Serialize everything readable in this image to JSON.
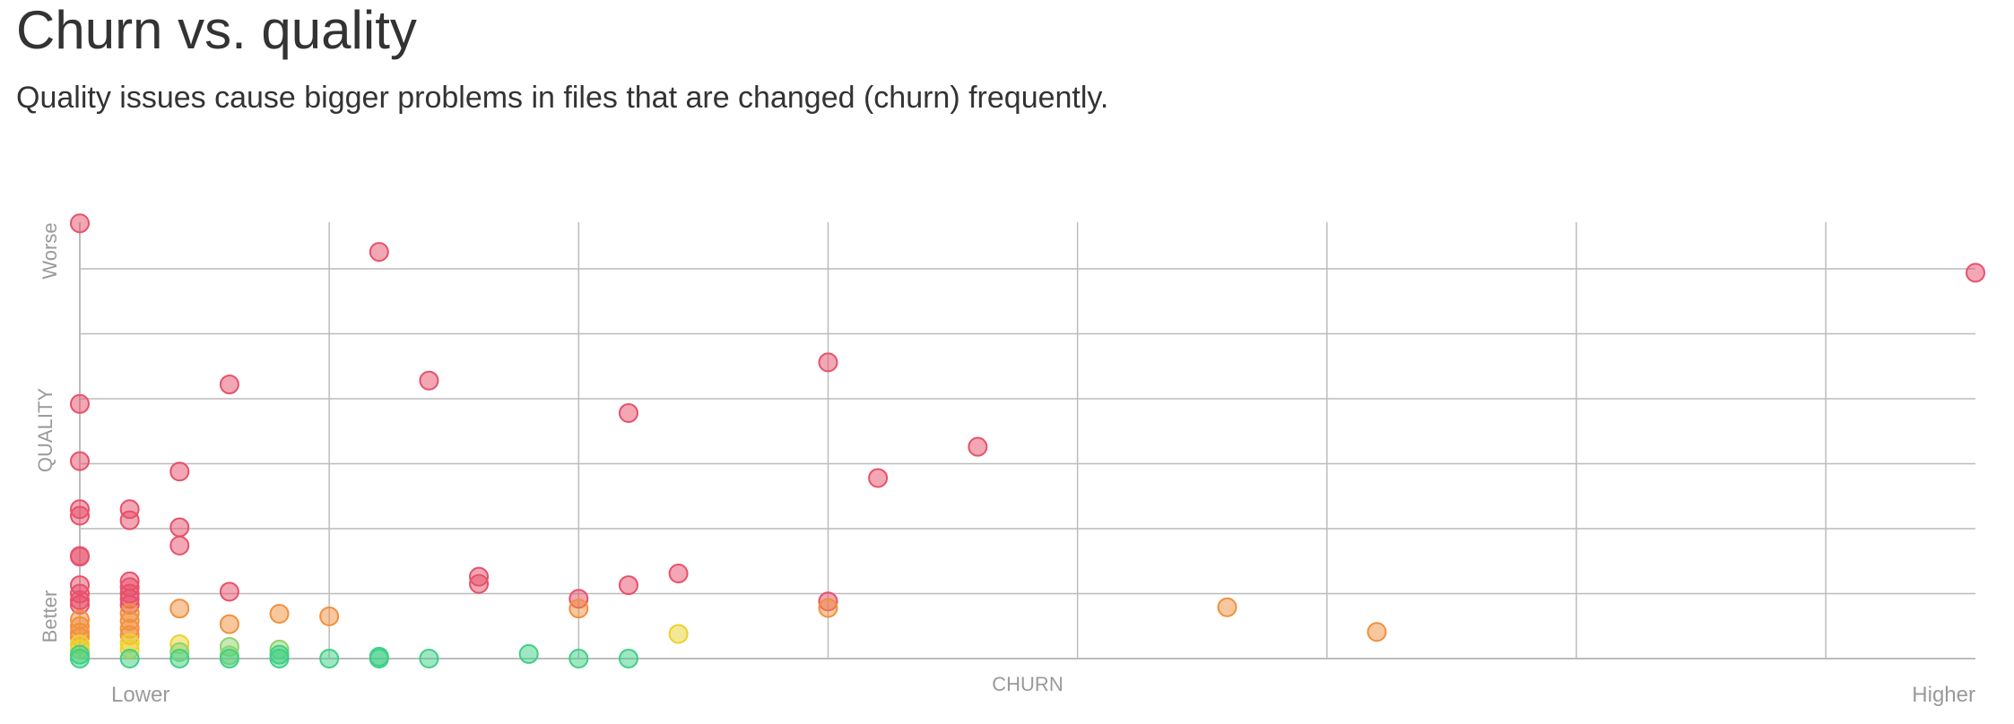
{
  "header": {
    "title": "Churn vs. quality",
    "subtitle": "Quality issues cause bigger problems in files that are changed (churn) frequently."
  },
  "colors": {
    "red": "#e8506a",
    "orange": "#f2903e",
    "yellow": "#ecd12c",
    "lightgreen": "#8fd36b",
    "green": "#3fcf86",
    "grid": "#bcbcbc",
    "axis_text": "#9a9a9a"
  },
  "chart_data": {
    "type": "scatter",
    "title": "Churn vs. quality",
    "subtitle": "Quality issues cause bigger problems in files that are changed (churn) frequently.",
    "xlabel": "CHURN",
    "ylabel": "QUALITY",
    "x_low_label": "Lower",
    "x_high_label": "Higher",
    "y_low_label": "Better",
    "y_high_label": "Worse",
    "xlim": [
      0,
      38
    ],
    "ylim": [
      0,
      6.7
    ],
    "grid": true,
    "x_gridlines": [
      0,
      5,
      10,
      15,
      20,
      25,
      30,
      35
    ],
    "y_gridlines": [
      0,
      1,
      2,
      3,
      4,
      5,
      6
    ],
    "points": [
      {
        "x": 0,
        "y": 6.7,
        "c": "red"
      },
      {
        "x": 6,
        "y": 6.26,
        "c": "red"
      },
      {
        "x": 38,
        "y": 5.94,
        "c": "red"
      },
      {
        "x": 15,
        "y": 4.56,
        "c": "red"
      },
      {
        "x": 3,
        "y": 4.22,
        "c": "red"
      },
      {
        "x": 7,
        "y": 4.28,
        "c": "red"
      },
      {
        "x": 0,
        "y": 3.92,
        "c": "red"
      },
      {
        "x": 11,
        "y": 3.78,
        "c": "red"
      },
      {
        "x": 18,
        "y": 3.26,
        "c": "red"
      },
      {
        "x": 0,
        "y": 3.04,
        "c": "red"
      },
      {
        "x": 2,
        "y": 2.88,
        "c": "red"
      },
      {
        "x": 16,
        "y": 2.78,
        "c": "red"
      },
      {
        "x": 0,
        "y": 2.3,
        "c": "red"
      },
      {
        "x": 0,
        "y": 2.2,
        "c": "red"
      },
      {
        "x": 1,
        "y": 2.3,
        "c": "red"
      },
      {
        "x": 1,
        "y": 2.13,
        "c": "red"
      },
      {
        "x": 2,
        "y": 2.02,
        "c": "red"
      },
      {
        "x": 2,
        "y": 1.74,
        "c": "red"
      },
      {
        "x": 0,
        "y": 1.58,
        "c": "red"
      },
      {
        "x": 0,
        "y": 1.57,
        "c": "red"
      },
      {
        "x": 8,
        "y": 1.26,
        "c": "red"
      },
      {
        "x": 8,
        "y": 1.15,
        "c": "red"
      },
      {
        "x": 12,
        "y": 1.31,
        "c": "red"
      },
      {
        "x": 11,
        "y": 1.13,
        "c": "red"
      },
      {
        "x": 0,
        "y": 1.13,
        "c": "red"
      },
      {
        "x": 0,
        "y": 1.0,
        "c": "red"
      },
      {
        "x": 0,
        "y": 0.9,
        "c": "red"
      },
      {
        "x": 0,
        "y": 0.83,
        "c": "red"
      },
      {
        "x": 1,
        "y": 1.19,
        "c": "red"
      },
      {
        "x": 1,
        "y": 1.1,
        "c": "red"
      },
      {
        "x": 1,
        "y": 1.0,
        "c": "red"
      },
      {
        "x": 1,
        "y": 0.92,
        "c": "red"
      },
      {
        "x": 1,
        "y": 0.83,
        "c": "red"
      },
      {
        "x": 3,
        "y": 1.03,
        "c": "red"
      },
      {
        "x": 10,
        "y": 0.92,
        "c": "red"
      },
      {
        "x": 15,
        "y": 0.88,
        "c": "red"
      },
      {
        "x": 2,
        "y": 0.77,
        "c": "orange"
      },
      {
        "x": 3,
        "y": 0.53,
        "c": "orange"
      },
      {
        "x": 4,
        "y": 0.69,
        "c": "orange"
      },
      {
        "x": 5,
        "y": 0.65,
        "c": "orange"
      },
      {
        "x": 10,
        "y": 0.77,
        "c": "orange"
      },
      {
        "x": 15,
        "y": 0.78,
        "c": "orange"
      },
      {
        "x": 23,
        "y": 0.79,
        "c": "orange"
      },
      {
        "x": 26,
        "y": 0.41,
        "c": "orange"
      },
      {
        "x": 0,
        "y": 0.6,
        "c": "orange"
      },
      {
        "x": 0,
        "y": 0.5,
        "c": "orange"
      },
      {
        "x": 0,
        "y": 0.4,
        "c": "orange"
      },
      {
        "x": 0,
        "y": 0.33,
        "c": "orange"
      },
      {
        "x": 1,
        "y": 0.7,
        "c": "orange"
      },
      {
        "x": 1,
        "y": 0.58,
        "c": "orange"
      },
      {
        "x": 1,
        "y": 0.46,
        "c": "orange"
      },
      {
        "x": 1,
        "y": 0.36,
        "c": "orange"
      },
      {
        "x": 12,
        "y": 0.38,
        "c": "yellow"
      },
      {
        "x": 2,
        "y": 0.22,
        "c": "yellow"
      },
      {
        "x": 0,
        "y": 0.22,
        "c": "yellow"
      },
      {
        "x": 0,
        "y": 0.14,
        "c": "yellow"
      },
      {
        "x": 1,
        "y": 0.24,
        "c": "yellow"
      },
      {
        "x": 1,
        "y": 0.14,
        "c": "yellow"
      },
      {
        "x": 3,
        "y": 0.18,
        "c": "lightgreen"
      },
      {
        "x": 4,
        "y": 0.14,
        "c": "lightgreen"
      },
      {
        "x": 2,
        "y": 0.1,
        "c": "lightgreen"
      },
      {
        "x": 3,
        "y": 0.05,
        "c": "lightgreen"
      },
      {
        "x": 0,
        "y": 0.06,
        "c": "green"
      },
      {
        "x": 0,
        "y": 0.0,
        "c": "green"
      },
      {
        "x": 1,
        "y": 0.0,
        "c": "green"
      },
      {
        "x": 2,
        "y": 0.0,
        "c": "green"
      },
      {
        "x": 3,
        "y": 0.0,
        "c": "green"
      },
      {
        "x": 4,
        "y": 0.0,
        "c": "green"
      },
      {
        "x": 4,
        "y": 0.06,
        "c": "green"
      },
      {
        "x": 5,
        "y": 0.0,
        "c": "green"
      },
      {
        "x": 6,
        "y": 0.0,
        "c": "green"
      },
      {
        "x": 6,
        "y": 0.03,
        "c": "green"
      },
      {
        "x": 7,
        "y": 0.0,
        "c": "green"
      },
      {
        "x": 9,
        "y": 0.07,
        "c": "green"
      },
      {
        "x": 10,
        "y": 0.0,
        "c": "green"
      },
      {
        "x": 11,
        "y": 0.0,
        "c": "green"
      }
    ]
  }
}
